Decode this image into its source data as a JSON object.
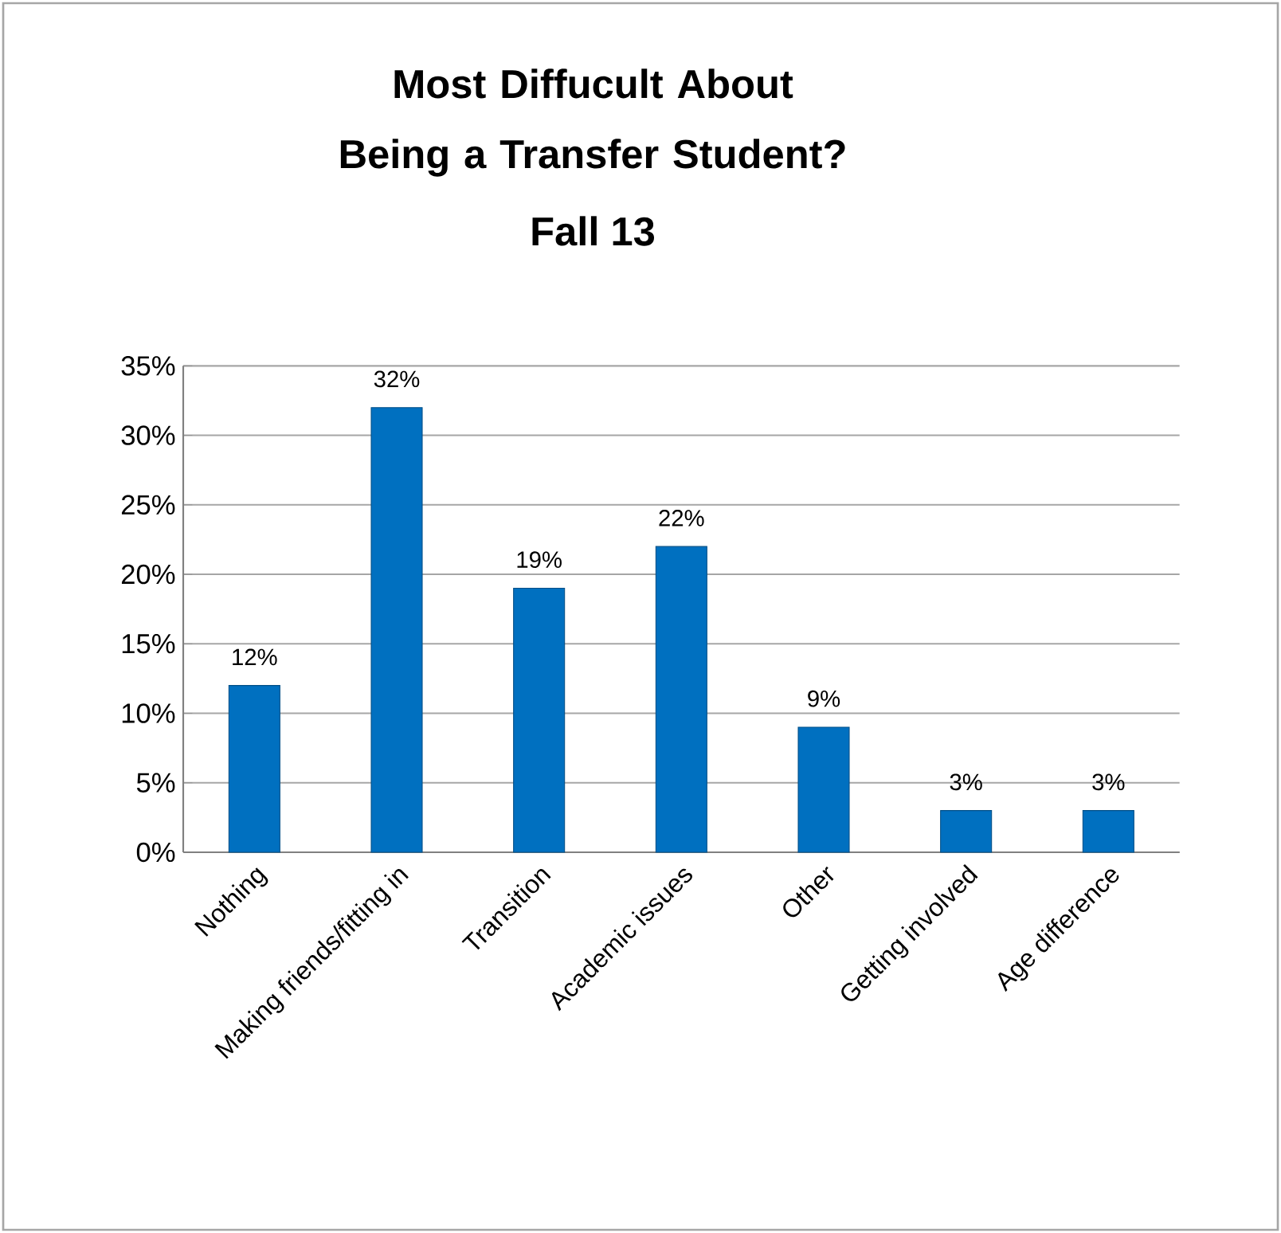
{
  "chart_data": {
    "type": "bar",
    "title": "Most Diffucult About Being a Transfer Student?",
    "subtitle": "Fall 13",
    "categories": [
      "Nothing",
      "Making friends/fitting in",
      "Transition",
      "Academic issues",
      "Other",
      "Getting involved",
      "Age difference"
    ],
    "values": [
      12,
      32,
      19,
      22,
      9,
      3,
      3
    ],
    "value_labels": [
      "12%",
      "32%",
      "19%",
      "22%",
      "9%",
      "3%",
      "3%"
    ],
    "color": "#0070c0",
    "ylim": [
      0,
      35
    ],
    "yticks": [
      {
        "value": 0,
        "label": "0%"
      },
      {
        "value": 5,
        "label": "5%"
      },
      {
        "value": 10,
        "label": "10%"
      },
      {
        "value": 15,
        "label": "15%"
      },
      {
        "value": 20,
        "label": "20%"
      },
      {
        "value": 25,
        "label": "25%"
      },
      {
        "value": 30,
        "label": "30%"
      },
      {
        "value": 35,
        "label": "35%"
      }
    ],
    "grid": "y"
  }
}
